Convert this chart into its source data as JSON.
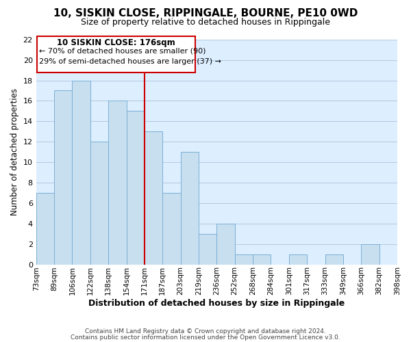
{
  "title": "10, SISKIN CLOSE, RIPPINGALE, BOURNE, PE10 0WD",
  "subtitle": "Size of property relative to detached houses in Rippingale",
  "xlabel": "Distribution of detached houses by size in Rippingale",
  "ylabel": "Number of detached properties",
  "bin_labels": [
    "73sqm",
    "89sqm",
    "106sqm",
    "122sqm",
    "138sqm",
    "154sqm",
    "171sqm",
    "187sqm",
    "203sqm",
    "219sqm",
    "236sqm",
    "252sqm",
    "268sqm",
    "284sqm",
    "301sqm",
    "317sqm",
    "333sqm",
    "349sqm",
    "366sqm",
    "382sqm",
    "398sqm"
  ],
  "bar_heights": [
    7,
    17,
    18,
    12,
    16,
    15,
    13,
    7,
    11,
    3,
    4,
    1,
    1,
    0,
    1,
    0,
    1,
    0,
    2,
    0
  ],
  "bar_color": "#c8dff0",
  "bar_edge_color": "#7aafd4",
  "reference_line_x": 6,
  "reference_line_color": "#cc0000",
  "annotation_box_title": "10 SISKIN CLOSE: 176sqm",
  "annotation_line1": "← 70% of detached houses are smaller (90)",
  "annotation_line2": "29% of semi-detached houses are larger (37) →",
  "annotation_box_edge_color": "#cc0000",
  "ylim": [
    0,
    22
  ],
  "yticks": [
    0,
    2,
    4,
    6,
    8,
    10,
    12,
    14,
    16,
    18,
    20,
    22
  ],
  "plot_bg_color": "#ddeeff",
  "background_color": "#ffffff",
  "grid_color": "#b0c8e0",
  "footer_line1": "Contains HM Land Registry data © Crown copyright and database right 2024.",
  "footer_line2": "Contains public sector information licensed under the Open Government Licence v3.0."
}
